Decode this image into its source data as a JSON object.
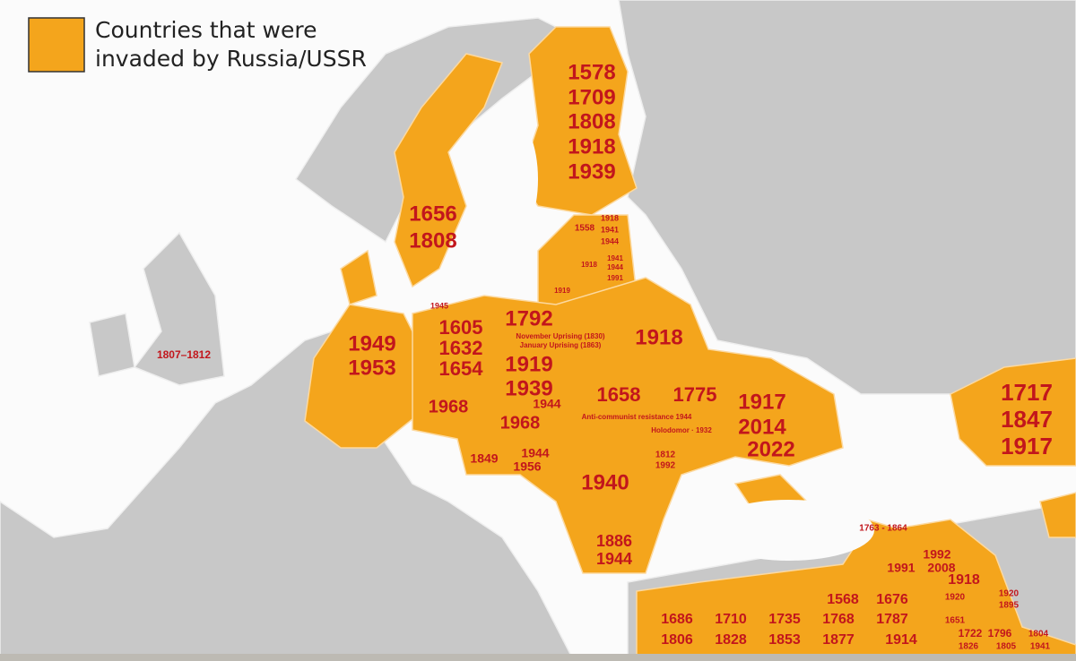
{
  "legend": {
    "lines": [
      "Countries that were",
      "invaded by Russia/USSR"
    ]
  },
  "map": {
    "labels": [
      "1578",
      "1709",
      "1808",
      "1918",
      "1939",
      "1656",
      "1808",
      "1807–1812",
      "1949",
      "1953",
      "1605",
      "1632",
      "1654",
      "1792",
      "1919",
      "1939",
      "November Uprising (1830)",
      "January Uprising (1863)",
      "1918",
      "1968",
      "1968",
      "1944",
      "1849",
      "1944",
      "1956",
      "1658",
      "1775",
      "1917",
      "2014",
      "2022",
      "Anti-communist resistance 1944",
      "Holodomor · 1932",
      "1940",
      "1812",
      "1992",
      "1886",
      "1944",
      "1558",
      "1918",
      "1941",
      "1944",
      "1919",
      "1918",
      "1941",
      "1944",
      "1991",
      "1945",
      "1568",
      "1676",
      "1686",
      "1710",
      "1735",
      "1768",
      "1787",
      "1806",
      "1828",
      "1853",
      "1877",
      "1914",
      "1763 - 1864",
      "1992",
      "1991",
      "2008",
      "1918",
      "1920",
      "1920",
      "1895",
      "1651",
      "1722",
      "1796",
      "1804",
      "1826",
      "1805",
      "1941",
      "1717",
      "1847",
      "1917"
    ]
  }
}
